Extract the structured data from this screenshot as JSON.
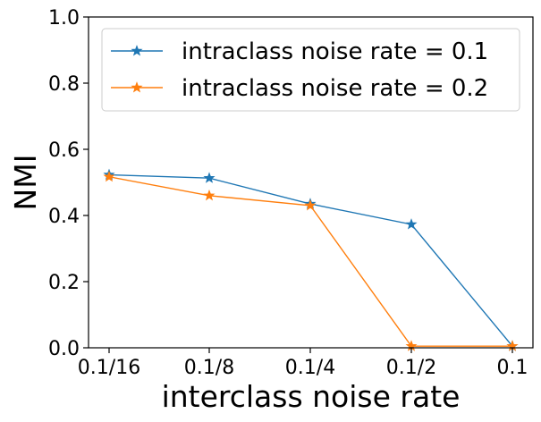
{
  "chart_data": {
    "type": "line",
    "title": "",
    "xlabel": "interclass noise rate",
    "ylabel": "NMI",
    "categories": [
      "0.1/16",
      "0.1/8",
      "0.1/4",
      "0.1/2",
      "0.1"
    ],
    "ylim": [
      0.0,
      1.0
    ],
    "yticks": [
      "0.0",
      "0.2",
      "0.4",
      "0.6",
      "0.8",
      "1.0"
    ],
    "ytick_values": [
      0.0,
      0.2,
      0.4,
      0.6,
      0.8,
      1.0
    ],
    "grid": false,
    "legend_position": "top-right",
    "series": [
      {
        "name": "intraclass noise rate = 0.1",
        "color": "#1f77b4",
        "marker": "star",
        "values": [
          0.523,
          0.513,
          0.435,
          0.373,
          0.005
        ]
      },
      {
        "name": "intraclass noise rate = 0.2",
        "color": "#ff7f0e",
        "marker": "star",
        "values": [
          0.517,
          0.46,
          0.43,
          0.005,
          0.005
        ]
      }
    ]
  }
}
